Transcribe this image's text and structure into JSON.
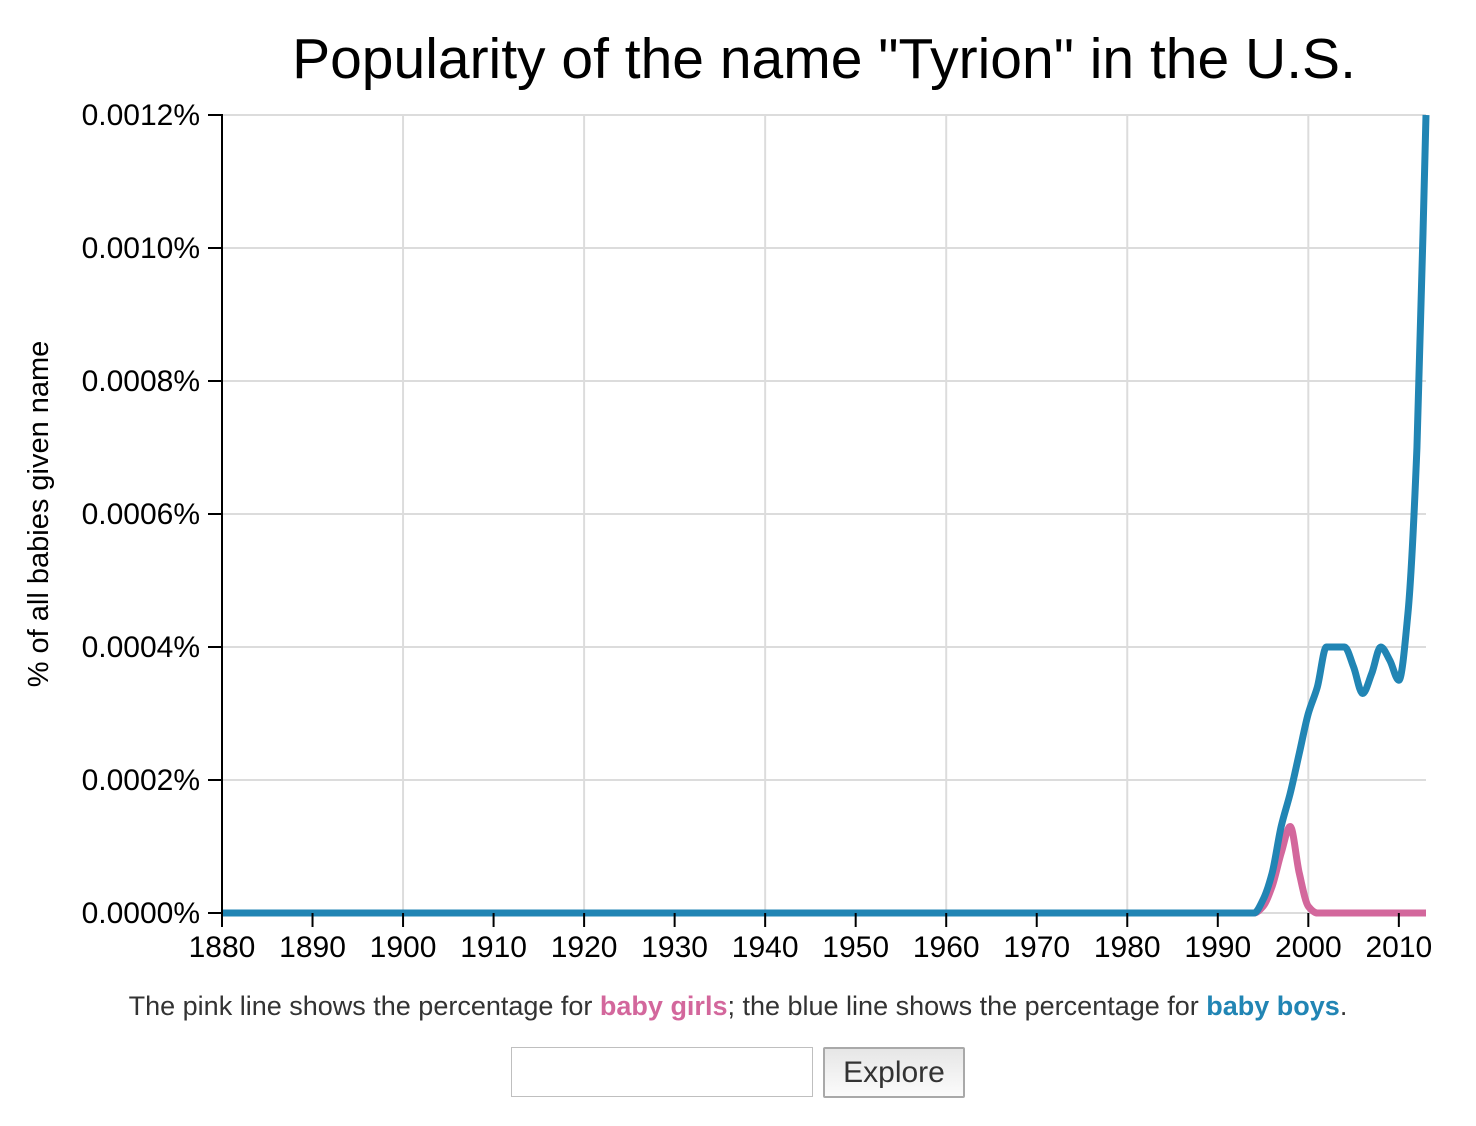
{
  "chart_data": {
    "type": "line",
    "title": "Popularity of the name \"Tyrion\" in the U.S.",
    "ylabel": "% of all babies given name",
    "xlabel": "",
    "xlim": [
      1880,
      2013
    ],
    "ylim": [
      0,
      0.0012
    ],
    "y_ticks": [
      {
        "value": 0.0012,
        "label": "0.0012%"
      },
      {
        "value": 0.001,
        "label": "0.0010%"
      },
      {
        "value": 0.0008,
        "label": "0.0008%"
      },
      {
        "value": 0.0006,
        "label": "0.0006%"
      },
      {
        "value": 0.0004,
        "label": "0.0004%"
      },
      {
        "value": 0.0002,
        "label": "0.0002%"
      },
      {
        "value": 0.0,
        "label": "0.0000%"
      }
    ],
    "x_ticks": [
      1880,
      1890,
      1900,
      1910,
      1920,
      1930,
      1940,
      1950,
      1960,
      1970,
      1980,
      1990,
      2000,
      2010
    ],
    "x_gridlines": [
      1900,
      1920,
      1940,
      1960,
      1980,
      2000
    ],
    "grid_color": "#dcdcdc",
    "axis_color": "#000000",
    "line_width": 7,
    "grid_on": true,
    "legend_position": "none",
    "series": [
      {
        "name": "baby girls",
        "color": "#d3679c",
        "points": [
          [
            1880,
            0
          ],
          [
            1994,
            0
          ],
          [
            1995,
            1e-05
          ],
          [
            1996,
            4e-05
          ],
          [
            1997,
            9e-05
          ],
          [
            1998,
            0.00013
          ],
          [
            1999,
            6e-05
          ],
          [
            2000,
            1e-05
          ],
          [
            2001,
            0
          ],
          [
            2013,
            0
          ]
        ]
      },
      {
        "name": "baby boys",
        "color": "#2185b4",
        "points": [
          [
            1880,
            0
          ],
          [
            1994,
            0
          ],
          [
            1995,
            2e-05
          ],
          [
            1996,
            6e-05
          ],
          [
            1997,
            0.00013
          ],
          [
            1998,
            0.00018
          ],
          [
            1999,
            0.00024
          ],
          [
            2000,
            0.0003
          ],
          [
            2001,
            0.00034
          ],
          [
            2002,
            0.0004
          ],
          [
            2003,
            0.0004
          ],
          [
            2004,
            0.0004
          ],
          [
            2005,
            0.00037
          ],
          [
            2006,
            0.00033
          ],
          [
            2007,
            0.00036
          ],
          [
            2008,
            0.0004
          ],
          [
            2009,
            0.00038
          ],
          [
            2010,
            0.00035
          ],
          [
            2011,
            0.00045
          ],
          [
            2012,
            0.0007
          ],
          [
            2013,
            0.0012
          ]
        ]
      }
    ]
  },
  "caption": {
    "prefix": "The pink line shows the percentage for ",
    "girls_label": "baby girls",
    "middle": "; the blue line shows the percentage for ",
    "boys_label": "baby boys",
    "suffix": ".",
    "girls_color": "#d3679c",
    "boys_color": "#2185b4"
  },
  "explore": {
    "input_value": "",
    "input_placeholder": "",
    "button_label": "Explore"
  }
}
